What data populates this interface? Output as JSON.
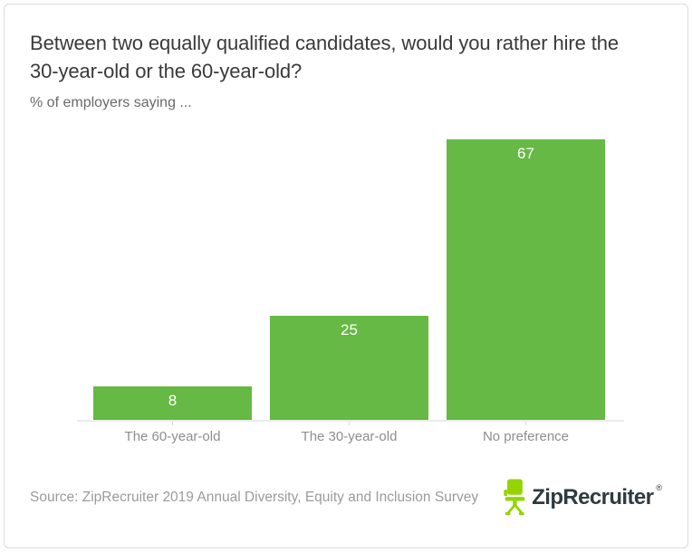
{
  "header": {
    "title": "Between two equally qualified candidates, would you rather hire the 30-year-old or the 60-year-old?",
    "subtitle": "% of employers saying ..."
  },
  "chart_data": {
    "type": "bar",
    "categories": [
      "The 60-year-old",
      "The 30-year-old",
      "No preference"
    ],
    "values": [
      8,
      25,
      67
    ],
    "title": "Between two equally qualified candidates, would you rather hire the 30-year-old or the 60-year-old?",
    "subtitle": "% of employers saying ...",
    "xlabel": "",
    "ylabel": "",
    "ylim": [
      0,
      71
    ],
    "grid": false,
    "legend": false,
    "value_label_position": "inside-top",
    "value_label_color": "#ffffff",
    "bar_color": "#66b944"
  },
  "footer": {
    "source": "Source: ZipRecruiter 2019 Annual Diversity, Equity and Inclusion Survey",
    "logo": {
      "text": "ZipRecruiter",
      "registered_mark": "®",
      "chair_icon": "office-chair-icon",
      "chair_icon_color": "#94d500",
      "wordmark_color": "#2f3a40"
    }
  },
  "colors": {
    "bar_green": "#66b944",
    "logo_lime": "#94d500",
    "wordmark_ink": "#2f3a40",
    "title_text": "#3a3a3a",
    "subtitle_text": "#6a6a6a",
    "axis_label_text": "#8e8e8e",
    "source_text": "#9b9b9b",
    "card_border": "#dcdcdc",
    "axis_line": "#ececec"
  }
}
